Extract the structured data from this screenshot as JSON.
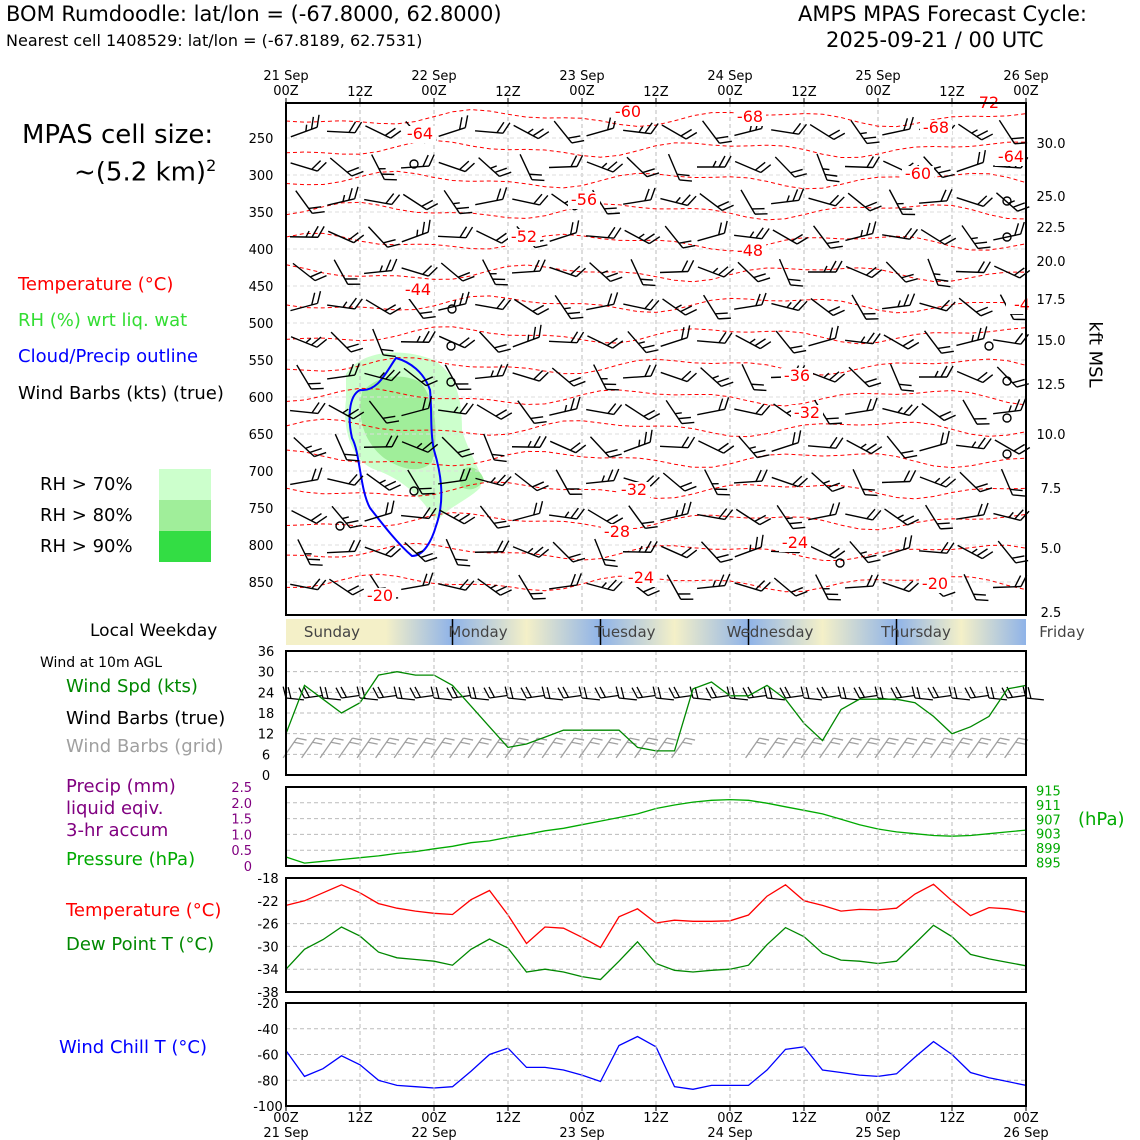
{
  "header": {
    "title_left": "BOM Rumdoodle: lat/lon = (-67.8000, 62.8000)",
    "subtitle_left": "Nearest cell 1408529: lat/lon = (-67.8189, 62.7531)",
    "title_right_1": "AMPS MPAS Forecast Cycle:",
    "title_right_2": "2025-09-21 / 00 UTC"
  },
  "legend": {
    "cell_size_1": "MPAS cell size:",
    "cell_size_2": "~(5.2 km)",
    "cell_size_exp": "2",
    "temp": "Temperature (°C)",
    "rh": "RH (%) wrt liq. wat",
    "cloud": "Cloud/Precip outline",
    "barbs": "Wind Barbs (kts) (true)",
    "rh70": "RH > 70%",
    "rh80": "RH > 80%",
    "rh90": "RH > 90%",
    "weekday_title": "Local Weekday",
    "wind10m": "Wind at 10m AGL",
    "wind_spd": "Wind Spd (kts)",
    "wind_barbs_true": "Wind Barbs (true)",
    "wind_barbs_grid": "Wind Barbs (grid)",
    "precip_1": "Precip (mm)",
    "precip_2": "liquid eqiv.",
    "precip_3": "3-hr accum",
    "pressure": "Pressure (hPa)",
    "pressure_unit": "(hPa)",
    "temperature2": "Temperature (°C)",
    "dewpoint": "Dew Point T (°C)",
    "windchill": "Wind Chill T (°C)",
    "kft": "kft MSL"
  },
  "colors": {
    "temp": "#ff0000",
    "rh_text": "#33dd33",
    "cloud": "#0000ff",
    "wind_spd": "#008800",
    "grid_barbs": "#a0a0a0",
    "precip": "#800080",
    "pressure": "#00aa00",
    "windchill": "#0000ff",
    "rh70": "#ccffcc",
    "rh80": "#a0ee9a",
    "rh90": "#33dd44"
  },
  "chart_data": {
    "type": "line",
    "x_top": [
      "21 Sep\n00Z",
      "12Z",
      "22 Sep\n00Z",
      "12Z",
      "23 Sep\n00Z",
      "12Z",
      "24 Sep\n00Z",
      "12Z",
      "25 Sep\n00Z",
      "12Z",
      "26 Sep\n00Z"
    ],
    "x_bottom": [
      "00Z\n21 Sep",
      "12Z",
      "00Z\n22 Sep",
      "12Z",
      "00Z\n23 Sep",
      "12Z",
      "00Z\n24 Sep",
      "12Z",
      "00Z\n25 Sep",
      "12Z",
      "00Z\n26 Sep"
    ],
    "hours_range": [
      0,
      120
    ],
    "profile": {
      "pressure_levels": [
        "250",
        "300",
        "350",
        "400",
        "450",
        "500",
        "550",
        "600",
        "650",
        "700",
        "750",
        "800",
        "850"
      ],
      "kft_ticks": [
        "30.0",
        "25.0",
        "22.5",
        "20.0",
        "17.5",
        "15.0",
        "12.5",
        "10.0",
        "7.5",
        "5.0",
        "2.5"
      ],
      "temp_labels": [
        "-64",
        "-60",
        "-68",
        "-68",
        "-72",
        "-64",
        "-60",
        "-56",
        "-52",
        "-48",
        "-44",
        "-4",
        "-36",
        "-32",
        "-32",
        "-28",
        "-24",
        "-24",
        "-20",
        "-20"
      ]
    },
    "weekdays": [
      "Sunday",
      "Monday",
      "Tuesday",
      "Wednesday",
      "Thursday",
      "Friday"
    ],
    "wind": {
      "ylim": [
        0,
        36
      ],
      "yticks": [
        "0",
        "6",
        "12",
        "18",
        "24",
        "30",
        "36"
      ],
      "hours": [
        0,
        3,
        6,
        9,
        12,
        15,
        18,
        21,
        24,
        27,
        30,
        33,
        36,
        39,
        42,
        45,
        48,
        51,
        54,
        57,
        60,
        63,
        66,
        69,
        72,
        75,
        78,
        81,
        84,
        87,
        90,
        93,
        96,
        99,
        102,
        105,
        108,
        111,
        114,
        117,
        120
      ],
      "speed_kts": [
        12,
        26,
        22,
        18,
        21,
        29,
        30,
        29,
        29,
        26,
        20,
        14,
        8,
        9,
        11,
        13,
        13,
        13,
        13,
        8,
        7,
        7,
        25,
        27,
        23,
        23,
        26,
        22,
        15,
        10,
        19,
        22,
        22,
        22,
        21,
        17,
        12,
        14,
        17,
        25,
        26
      ]
    },
    "precip_pressure": {
      "precip_ylim": [
        0,
        2.5
      ],
      "precip_yticks": [
        "0",
        "0.5",
        "1.0",
        "1.5",
        "2.0",
        "2.5"
      ],
      "pressure_ylim": [
        894,
        916
      ],
      "pressure_yticks": [
        "895",
        "899",
        "903",
        "907",
        "911",
        "915"
      ],
      "hours": [
        0,
        3,
        6,
        9,
        12,
        15,
        18,
        21,
        24,
        27,
        30,
        33,
        36,
        39,
        42,
        45,
        48,
        51,
        54,
        57,
        60,
        63,
        66,
        69,
        72,
        75,
        78,
        81,
        84,
        87,
        90,
        93,
        96,
        99,
        102,
        105,
        108,
        111,
        114,
        117,
        120
      ],
      "pressure_hpa": [
        896.5,
        894.8,
        895.3,
        895.8,
        896.3,
        896.8,
        897.5,
        898.0,
        898.8,
        899.5,
        900.5,
        901.0,
        902.0,
        902.8,
        903.8,
        904.5,
        905.5,
        906.5,
        907.5,
        908.5,
        910.0,
        911.0,
        911.8,
        912.3,
        912.5,
        912.3,
        911.5,
        910.5,
        909.5,
        908.5,
        907.0,
        905.5,
        904.3,
        903.5,
        903.0,
        902.5,
        902.3,
        902.5,
        903.0,
        903.5,
        904.0
      ]
    },
    "temp_dew": {
      "ylim": [
        -38,
        -18
      ],
      "yticks": [
        "-18",
        "-22",
        "-26",
        "-30",
        "-34",
        "-38"
      ],
      "hours": [
        0,
        3,
        6,
        9,
        12,
        15,
        18,
        21,
        24,
        27,
        30,
        33,
        36,
        39,
        42,
        45,
        48,
        51,
        54,
        57,
        60,
        63,
        66,
        69,
        72,
        75,
        78,
        81,
        84,
        87,
        90,
        93,
        96,
        99,
        102,
        105,
        108,
        111,
        114,
        117,
        120
      ],
      "temperature_c": [
        -22.8,
        -22,
        -20.6,
        -19.2,
        -20.6,
        -22.5,
        -23.3,
        -23.8,
        -24.2,
        -24.4,
        -21.8,
        -20.2,
        -24.5,
        -29.5,
        -26.6,
        -26.8,
        -28.4,
        -30.2,
        -24.8,
        -23.4,
        -25.9,
        -25.4,
        -25.6,
        -25.6,
        -25.5,
        -24.5,
        -21.2,
        -19.2,
        -22,
        -22.8,
        -23.8,
        -23.5,
        -23.6,
        -23.3,
        -20.8,
        -19.1,
        -22,
        -24.6,
        -23.2,
        -23.4,
        -24
      ]
    },
    "dewpoint_c": [
      -34,
      -30.5,
      -28.8,
      -26.6,
      -28.2,
      -31,
      -32,
      -32.3,
      -32.6,
      -33.3,
      -30.5,
      -28.7,
      -30.3,
      -34.5,
      -34,
      -34.5,
      -35.3,
      -35.8,
      -32.6,
      -29.2,
      -33,
      -34.2,
      -34.5,
      -34.2,
      -34,
      -33.3,
      -29.7,
      -26.7,
      -28.3,
      -31.2,
      -32.4,
      -32.6,
      -33,
      -32.6,
      -29.5,
      -26.3,
      -28.3,
      -31.4,
      -32.2,
      -32.8,
      -33.4
    ],
    "windchill": {
      "ylim": [
        -100,
        -20
      ],
      "yticks": [
        "-20",
        "-40",
        "-60",
        "-80",
        "-100"
      ],
      "hours": [
        0,
        3,
        6,
        9,
        12,
        15,
        18,
        21,
        24,
        27,
        30,
        33,
        36,
        39,
        42,
        45,
        48,
        51,
        54,
        57,
        60,
        63,
        66,
        69,
        72,
        75,
        78,
        81,
        84,
        87,
        90,
        93,
        96,
        99,
        102,
        105,
        108,
        111,
        114,
        117,
        120
      ],
      "windchill_c": [
        -57,
        -77,
        -71,
        -61,
        -68,
        -80,
        -84,
        -85,
        -86,
        -85,
        -73,
        -60,
        -55,
        -70,
        -70,
        -72,
        -76,
        -81,
        -53,
        -46,
        -54,
        -85,
        -87,
        -84,
        -84,
        -84,
        -72,
        -56,
        -54,
        -72,
        -74,
        -76,
        -77,
        -75,
        -62,
        -50,
        -60,
        -74,
        -78,
        -81,
        -84
      ]
    }
  }
}
